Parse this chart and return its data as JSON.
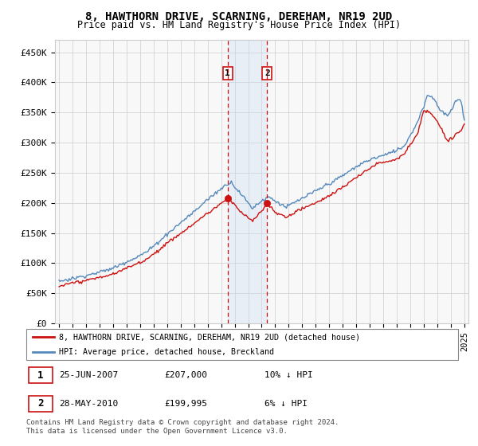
{
  "title": "8, HAWTHORN DRIVE, SCARNING, DEREHAM, NR19 2UD",
  "subtitle": "Price paid vs. HM Land Registry's House Price Index (HPI)",
  "ylim": [
    0,
    470000
  ],
  "yticks": [
    0,
    50000,
    100000,
    150000,
    200000,
    250000,
    300000,
    350000,
    400000,
    450000
  ],
  "ytick_labels": [
    "£0",
    "£50K",
    "£100K",
    "£150K",
    "£200K",
    "£250K",
    "£300K",
    "£350K",
    "£400K",
    "£450K"
  ],
  "sale1_date": 2007.48,
  "sale1_price": 207000,
  "sale1_label": "1",
  "sale2_date": 2010.4,
  "sale2_price": 199995,
  "sale2_label": "2",
  "legend_line1": "8, HAWTHORN DRIVE, SCARNING, DEREHAM, NR19 2UD (detached house)",
  "legend_line2": "HPI: Average price, detached house, Breckland",
  "sale1_col1": "25-JUN-2007",
  "sale1_col2": "£207,000",
  "sale1_col3": "10% ↓ HPI",
  "sale2_col1": "28-MAY-2010",
  "sale2_col2": "£199,995",
  "sale2_col3": "6% ↓ HPI",
  "footer": "Contains HM Land Registry data © Crown copyright and database right 2024.\nThis data is licensed under the Open Government Licence v3.0.",
  "hpi_color": "#5588bb",
  "price_color": "#cc1111",
  "shade_color": "#ccddf0",
  "grid_color": "#cccccc",
  "bg_color": "#f8f8f8"
}
